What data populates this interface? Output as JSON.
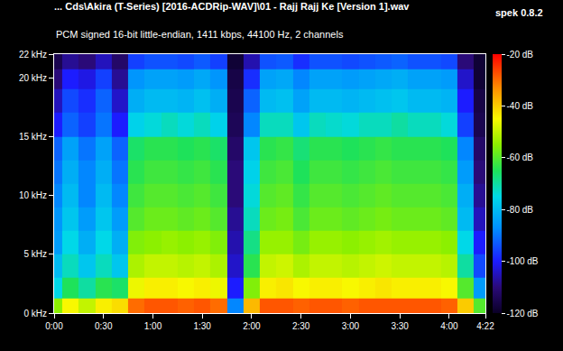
{
  "chart_data": {
    "type": "heatmap",
    "title": "... Cds\\Akira (T-Series) [2016-ACDRip-WAV]\\01 - Rajj Rajj Ke [Version 1].wav",
    "subtitle": "PCM signed 16-bit little-endian, 1411 kbps, 44100 Hz, 2 channels",
    "annotations": [
      "spek 0.8.2"
    ],
    "grid": false,
    "xlim": [
      0,
      262
    ],
    "xticks": [
      {
        "value": 0,
        "label": "0:00"
      },
      {
        "value": 30,
        "label": "0:30"
      },
      {
        "value": 60,
        "label": "1:00"
      },
      {
        "value": 90,
        "label": "1:30"
      },
      {
        "value": 120,
        "label": "2:00"
      },
      {
        "value": 150,
        "label": "2:30"
      },
      {
        "value": 180,
        "label": "3:00"
      },
      {
        "value": 210,
        "label": "3:30"
      },
      {
        "value": 240,
        "label": "4:00"
      },
      {
        "value": 262,
        "label": "4:22"
      }
    ],
    "ylim": [
      0,
      22
    ],
    "yticks": [
      {
        "value": 0,
        "label": "0 kHz"
      },
      {
        "value": 5,
        "label": "5 kHz"
      },
      {
        "value": 10,
        "label": "10 kHz"
      },
      {
        "value": 15,
        "label": "15 kHz"
      },
      {
        "value": 20,
        "label": "20 kHz"
      },
      {
        "value": 22,
        "label": "22 kHz"
      }
    ],
    "zlim": [
      -120,
      -20
    ],
    "zticks": [
      {
        "value": -20,
        "label": "-20 dB"
      },
      {
        "value": -40,
        "label": "-40 dB"
      },
      {
        "value": -60,
        "label": "-60 dB"
      },
      {
        "value": -80,
        "label": "-80 dB"
      },
      {
        "value": -100,
        "label": "-100 dB"
      },
      {
        "value": -120,
        "label": "-120 dB"
      }
    ],
    "x": [
      0,
      10,
      20,
      30,
      40,
      50,
      60,
      70,
      80,
      90,
      100,
      110,
      120,
      130,
      140,
      150,
      160,
      170,
      180,
      190,
      200,
      210,
      220,
      230,
      240,
      250,
      260
    ],
    "y": [
      0.5,
      2,
      4,
      6,
      8,
      10,
      12,
      14,
      16,
      18,
      20,
      21.5
    ],
    "z": [
      [
        -55,
        -45,
        -50,
        -44,
        -42,
        -30,
        -28,
        -28,
        -29,
        -28,
        -30,
        -88,
        -38,
        -28,
        -28,
        -29,
        -28,
        -28,
        -29,
        -28,
        -28,
        -28,
        -28,
        -28,
        -29,
        -40,
        -60
      ],
      [
        -75,
        -65,
        -70,
        -64,
        -66,
        -46,
        -44,
        -44,
        -45,
        -44,
        -46,
        -100,
        -56,
        -44,
        -43,
        -45,
        -44,
        -44,
        -45,
        -44,
        -43,
        -44,
        -44,
        -44,
        -45,
        -60,
        -85
      ],
      [
        -80,
        -72,
        -78,
        -72,
        -78,
        -52,
        -50,
        -50,
        -51,
        -50,
        -52,
        -104,
        -64,
        -50,
        -49,
        -52,
        -50,
        -50,
        -51,
        -50,
        -49,
        -50,
        -50,
        -50,
        -51,
        -70,
        -95
      ],
      [
        -85,
        -75,
        -82,
        -75,
        -82,
        -56,
        -55,
        -54,
        -55,
        -54,
        -56,
        -106,
        -68,
        -54,
        -54,
        -57,
        -54,
        -54,
        -55,
        -54,
        -53,
        -54,
        -54,
        -54,
        -55,
        -75,
        -100
      ],
      [
        -86,
        -78,
        -85,
        -78,
        -85,
        -60,
        -58,
        -58,
        -59,
        -58,
        -60,
        -108,
        -72,
        -58,
        -57,
        -61,
        -58,
        -58,
        -59,
        -58,
        -57,
        -58,
        -58,
        -58,
        -59,
        -80,
        -105
      ],
      [
        -88,
        -80,
        -88,
        -80,
        -88,
        -62,
        -60,
        -60,
        -61,
        -60,
        -62,
        -110,
        -74,
        -60,
        -59,
        -63,
        -60,
        -60,
        -61,
        -60,
        -59,
        -60,
        -60,
        -60,
        -61,
        -82,
        -108
      ],
      [
        -90,
        -82,
        -88,
        -82,
        -90,
        -64,
        -62,
        -62,
        -63,
        -62,
        -64,
        -110,
        -76,
        -62,
        -61,
        -65,
        -62,
        -62,
        -63,
        -62,
        -61,
        -62,
        -62,
        -62,
        -63,
        -85,
        -110
      ],
      [
        -92,
        -84,
        -90,
        -84,
        -92,
        -66,
        -64,
        -64,
        -65,
        -64,
        -66,
        -112,
        -78,
        -64,
        -63,
        -67,
        -64,
        -64,
        -65,
        -64,
        -63,
        -64,
        -64,
        -64,
        -65,
        -88,
        -112
      ],
      [
        -100,
        -92,
        -96,
        -90,
        -100,
        -76,
        -74,
        -72,
        -74,
        -72,
        -76,
        -114,
        -88,
        -72,
        -72,
        -78,
        -72,
        -73,
        -74,
        -72,
        -72,
        -70,
        -72,
        -72,
        -74,
        -96,
        -115
      ],
      [
        -105,
        -95,
        -98,
        -92,
        -104,
        -82,
        -80,
        -80,
        -81,
        -79,
        -82,
        -115,
        -92,
        -80,
        -79,
        -84,
        -80,
        -80,
        -81,
        -80,
        -79,
        -78,
        -80,
        -80,
        -81,
        -100,
        -116
      ],
      [
        -110,
        -100,
        -102,
        -96,
        -108,
        -86,
        -84,
        -84,
        -85,
        -83,
        -86,
        -116,
        -98,
        -84,
        -83,
        -88,
        -84,
        -84,
        -85,
        -84,
        -83,
        -82,
        -84,
        -84,
        -85,
        -104,
        -118
      ],
      [
        -115,
        -108,
        -110,
        -105,
        -112,
        -96,
        -94,
        -94,
        -95,
        -93,
        -96,
        -118,
        -106,
        -94,
        -93,
        -98,
        -94,
        -94,
        -95,
        -94,
        -93,
        -92,
        -94,
        -94,
        -95,
        -110,
        -118
      ]
    ]
  }
}
